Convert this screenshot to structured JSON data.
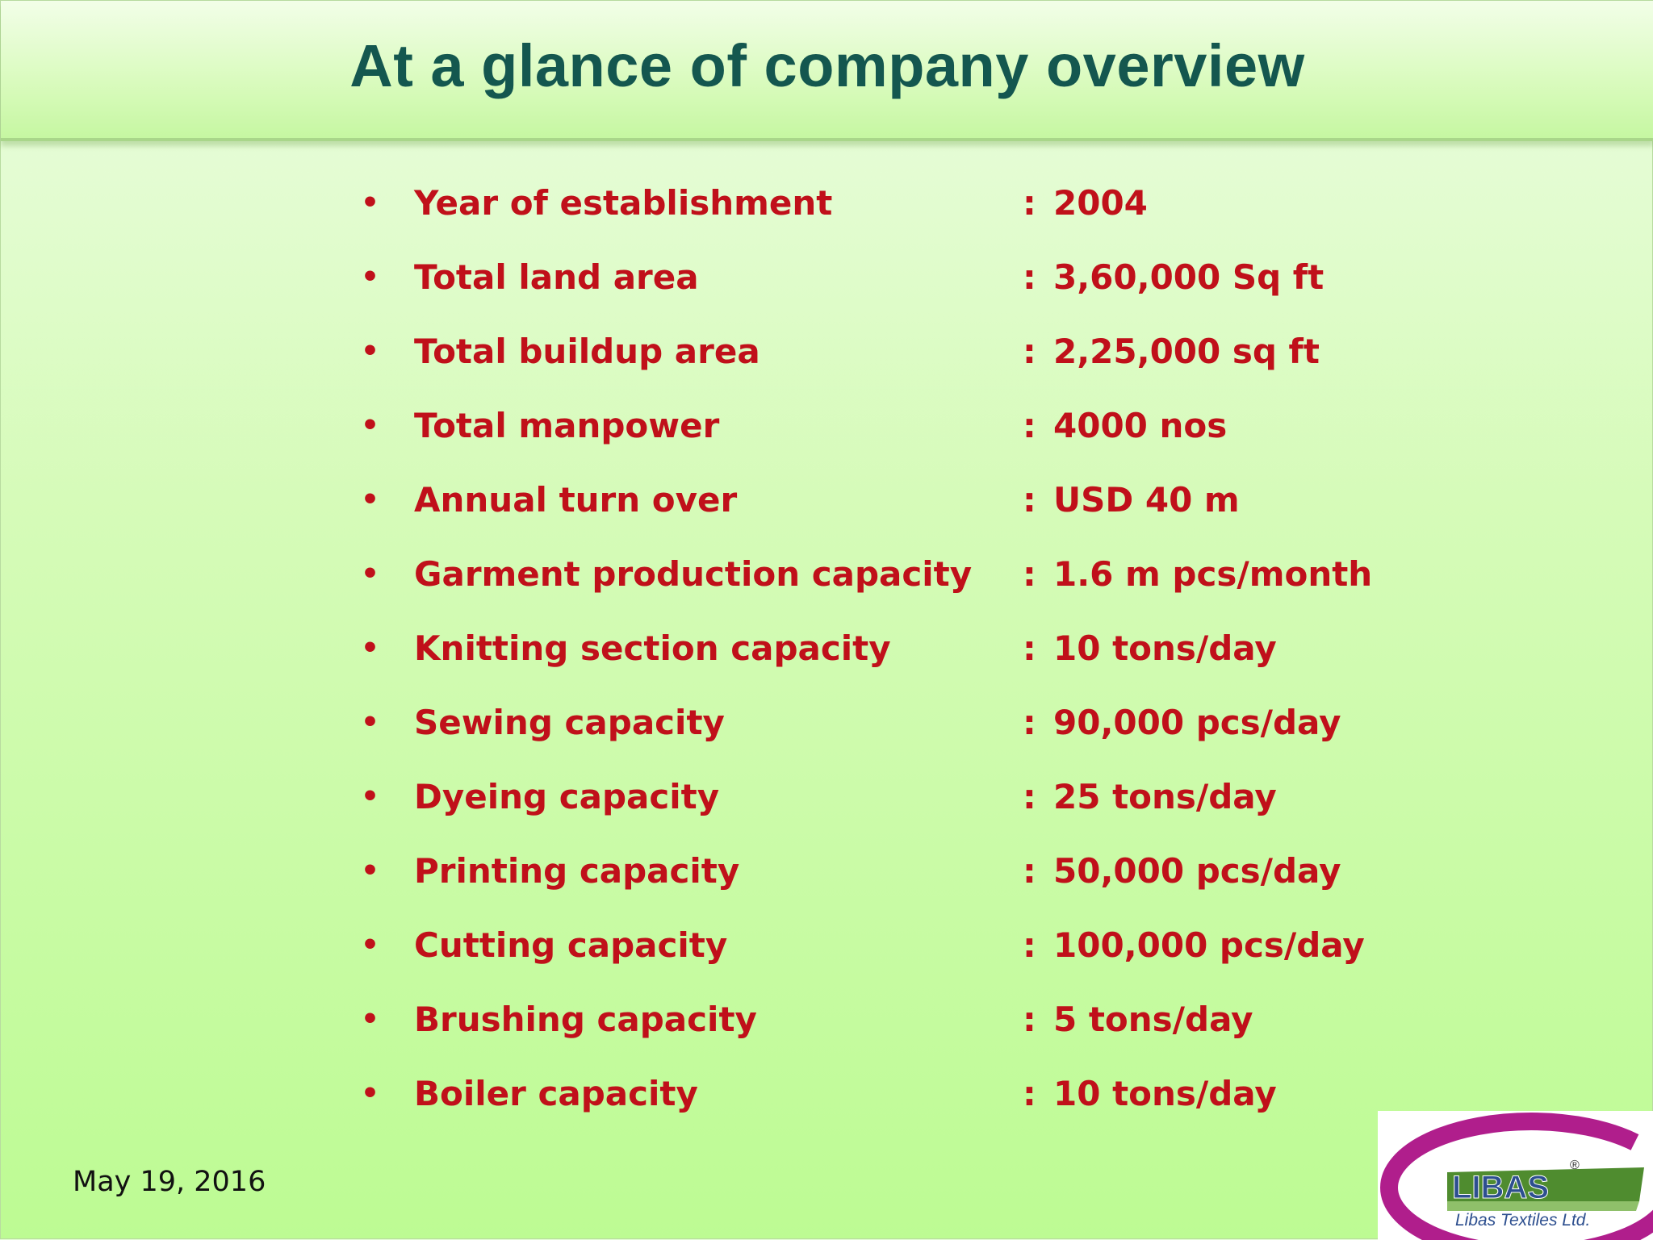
{
  "title": "At a glance of company overview",
  "facts": [
    {
      "label": "Year of establishment",
      "value": "2004"
    },
    {
      "label": "Total land area",
      "value": "3,60,000 Sq ft"
    },
    {
      "label": "Total buildup area",
      "value": "2,25,000 sq ft"
    },
    {
      "label": "Total manpower",
      "value": "4000 nos"
    },
    {
      "label": "Annual turn over",
      "value": "USD 40 m"
    },
    {
      "label": "Garment production capacity",
      "value": "1.6 m pcs/month"
    },
    {
      "label": "Knitting section capacity",
      "value": "10 tons/day"
    },
    {
      "label": "Sewing capacity",
      "value": "90,000 pcs/day"
    },
    {
      "label": "Dyeing capacity",
      "value": "25 tons/day"
    },
    {
      "label": "Printing capacity",
      "value": "50,000 pcs/day"
    },
    {
      "label": "Cutting capacity",
      "value": "100,000 pcs/day"
    },
    {
      "label": "Brushing capacity",
      "value": "5 tons/day"
    },
    {
      "label": "Boiler capacity",
      "value": "10 tons/day"
    }
  ],
  "bullet": "•",
  "separator": ":",
  "footer": {
    "date": "May 19, 2016"
  },
  "logo": {
    "brand": "LIBAS",
    "registered": "®",
    "company": "Libas Textiles Ltd."
  },
  "colors": {
    "title": "#14574f",
    "fact_text": "#c0101a",
    "background_top": "#ebfde0",
    "background_bottom": "#bdfb93",
    "logo_swoosh": "#b01e8c",
    "logo_green": "#4f8c2f",
    "logo_text": "#2d4f8f"
  }
}
